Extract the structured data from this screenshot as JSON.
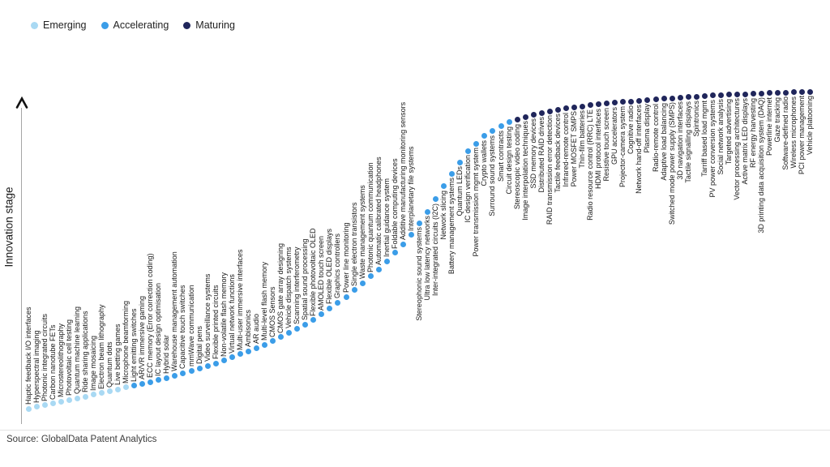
{
  "legend": {
    "items": [
      {
        "label": "Emerging",
        "color": "#a9d9f3"
      },
      {
        "label": "Accelerating",
        "color": "#3b9de8"
      },
      {
        "label": "Maturing",
        "color": "#20265b"
      }
    ]
  },
  "y_axis": {
    "label": "Innovation stage"
  },
  "footer": {
    "source": "Source: GlobalData Patent Analytics"
  },
  "chart_data": {
    "type": "scatter",
    "ylabel": "Innovation stage",
    "xlabel": "",
    "grid": false,
    "legend_position": "top-left",
    "source": "Source: GlobalData Patent Analytics",
    "stages": {
      "emerging": "#a9d9f3",
      "accelerating": "#3b9de8",
      "maturing": "#20265b"
    },
    "stage_ranges": {
      "emerging": [
        1,
        13
      ],
      "accelerating": [
        14,
        60
      ],
      "maturing": [
        61,
        97
      ]
    },
    "items": [
      {
        "label": "Haptic feedback I/O interfaces",
        "stage": "emerging"
      },
      {
        "label": "Hyperspectral imaging",
        "stage": "emerging"
      },
      {
        "label": "Photonic integrated circuits",
        "stage": "emerging"
      },
      {
        "label": "Carbon nanotube FETs",
        "stage": "emerging"
      },
      {
        "label": "Microstereolithography",
        "stage": "emerging"
      },
      {
        "label": "Photovoltaic cell testing",
        "stage": "emerging"
      },
      {
        "label": "Quantum machine learning",
        "stage": "emerging"
      },
      {
        "label": "Ride sharing applications",
        "stage": "emerging"
      },
      {
        "label": "Image mosaicing",
        "stage": "emerging"
      },
      {
        "label": "Electron beam lithography",
        "stage": "emerging"
      },
      {
        "label": "Quantum dots",
        "stage": "emerging"
      },
      {
        "label": "Live betting games",
        "stage": "emerging"
      },
      {
        "label": "Microphone beamforming",
        "stage": "emerging"
      },
      {
        "label": "Light emitting switches",
        "stage": "accelerating"
      },
      {
        "label": "AR/VR immersive gaming",
        "stage": "accelerating"
      },
      {
        "label": "ECC memory (Error correction coding)",
        "stage": "accelerating"
      },
      {
        "label": "IC layout design optimisation",
        "stage": "accelerating"
      },
      {
        "label": "Hybrid solar",
        "stage": "accelerating"
      },
      {
        "label": "Warehouse management automation",
        "stage": "accelerating"
      },
      {
        "label": "Capacitive touch switches",
        "stage": "accelerating"
      },
      {
        "label": "mmWave communication",
        "stage": "accelerating"
      },
      {
        "label": "Digital pens",
        "stage": "accelerating"
      },
      {
        "label": "Video surveillance systems",
        "stage": "accelerating"
      },
      {
        "label": "Flexible printed circuits",
        "stage": "accelerating"
      },
      {
        "label": "Non-volatile flash memory",
        "stage": "accelerating"
      },
      {
        "label": "Virtual network functions",
        "stage": "accelerating"
      },
      {
        "label": "Multi-user immersive interfaces",
        "stage": "accelerating"
      },
      {
        "label": "Ambisonics",
        "stage": "accelerating"
      },
      {
        "label": "AR audio",
        "stage": "accelerating"
      },
      {
        "label": "Multi-level flash memory",
        "stage": "accelerating"
      },
      {
        "label": "CMOS Sensors",
        "stage": "accelerating"
      },
      {
        "label": "CMOS gate array designing",
        "stage": "accelerating"
      },
      {
        "label": "Vehicle dispatch systems",
        "stage": "accelerating"
      },
      {
        "label": "Scanning interferometry",
        "stage": "accelerating"
      },
      {
        "label": "Spatial sound processing",
        "stage": "accelerating"
      },
      {
        "label": "Flexible photovoltaic OLED",
        "stage": "accelerating"
      },
      {
        "label": "AMOLED touch screen",
        "stage": "accelerating"
      },
      {
        "label": "Flexible OLED displays",
        "stage": "accelerating"
      },
      {
        "label": "Graphics controllers",
        "stage": "accelerating"
      },
      {
        "label": "Power line monitoring",
        "stage": "accelerating"
      },
      {
        "label": "Single electron transistors",
        "stage": "accelerating"
      },
      {
        "label": "Waste management systems",
        "stage": "accelerating"
      },
      {
        "label": "Photonic quantum communication",
        "stage": "accelerating"
      },
      {
        "label": "Automatic calibrated headphones",
        "stage": "accelerating"
      },
      {
        "label": "Inertial guidance system",
        "stage": "accelerating"
      },
      {
        "label": "Foldable computing devices",
        "stage": "accelerating"
      },
      {
        "label": "Additive manufacturing monitoring sensors",
        "stage": "accelerating"
      },
      {
        "label": "Interplanetary file systems",
        "stage": "accelerating"
      },
      {
        "label": "Stereophonic sound systems",
        "stage": "accelerating"
      },
      {
        "label": "Ultra low latency networks",
        "stage": "accelerating"
      },
      {
        "label": "Inter-integrated circuits (I2C)",
        "stage": "accelerating"
      },
      {
        "label": "Network slicing",
        "stage": "accelerating"
      },
      {
        "label": "Battery management systems",
        "stage": "accelerating"
      },
      {
        "label": "Quantum LEDs",
        "stage": "accelerating"
      },
      {
        "label": "IC design verification",
        "stage": "accelerating"
      },
      {
        "label": "Power transmission mgmt system",
        "stage": "accelerating"
      },
      {
        "label": "Crypto wallets",
        "stage": "accelerating"
      },
      {
        "label": "Surround sound systems",
        "stage": "accelerating"
      },
      {
        "label": "Smart contracts",
        "stage": "accelerating"
      },
      {
        "label": "Circuit design testing",
        "stage": "accelerating"
      },
      {
        "label": "Stereoscopic video coding",
        "stage": "maturing"
      },
      {
        "label": "Image interpolation techniques",
        "stage": "maturing"
      },
      {
        "label": "SSD memory devices",
        "stage": "maturing"
      },
      {
        "label": "Distributed RAID drives",
        "stage": "maturing"
      },
      {
        "label": "RAID transmission error detection",
        "stage": "maturing"
      },
      {
        "label": "Tactile feedback devices",
        "stage": "maturing"
      },
      {
        "label": "Infrared-remote control",
        "stage": "maturing"
      },
      {
        "label": "Power MOSFET SMPS",
        "stage": "maturing"
      },
      {
        "label": "Thin-film batteries",
        "stage": "maturing"
      },
      {
        "label": "Radio resource control (RRC) LTE",
        "stage": "maturing"
      },
      {
        "label": "HDMI protocol interfaces",
        "stage": "maturing"
      },
      {
        "label": "Resistive touch screen",
        "stage": "maturing"
      },
      {
        "label": "GPU accelerators",
        "stage": "maturing"
      },
      {
        "label": "Projector-camera system",
        "stage": "maturing"
      },
      {
        "label": "Cognitive radio",
        "stage": "maturing"
      },
      {
        "label": "Network hand-off interfaces",
        "stage": "maturing"
      },
      {
        "label": "Plasma display",
        "stage": "maturing"
      },
      {
        "label": "Radio-remote control",
        "stage": "maturing"
      },
      {
        "label": "Adaptive load balancing",
        "stage": "maturing"
      },
      {
        "label": "Switched mode power supply (SMPS)",
        "stage": "maturing"
      },
      {
        "label": "3D navigation interfaces",
        "stage": "maturing"
      },
      {
        "label": "Tactile signalling displays",
        "stage": "maturing"
      },
      {
        "label": "Spintronics",
        "stage": "maturing"
      },
      {
        "label": "Tarriff based load mgmt",
        "stage": "maturing"
      },
      {
        "label": "PV power conversion systems",
        "stage": "maturing"
      },
      {
        "label": "Social network analysis",
        "stage": "maturing"
      },
      {
        "label": "Targeted advertising",
        "stage": "maturing"
      },
      {
        "label": "Vector processing architectures",
        "stage": "maturing"
      },
      {
        "label": "Active matrix LED displays",
        "stage": "maturing"
      },
      {
        "label": "RF energy harvesting",
        "stage": "maturing"
      },
      {
        "label": "3D printing data acquisition system (DAQ)",
        "stage": "maturing"
      },
      {
        "label": "Powerline internet",
        "stage": "maturing"
      },
      {
        "label": "Gaze tracking",
        "stage": "maturing"
      },
      {
        "label": "Software-defined radio",
        "stage": "maturing"
      },
      {
        "label": "Wireless microphones",
        "stage": "maturing"
      },
      {
        "label": "PCI power management",
        "stage": "maturing"
      },
      {
        "label": "Vehicle platooning",
        "stage": "maturing"
      }
    ]
  }
}
